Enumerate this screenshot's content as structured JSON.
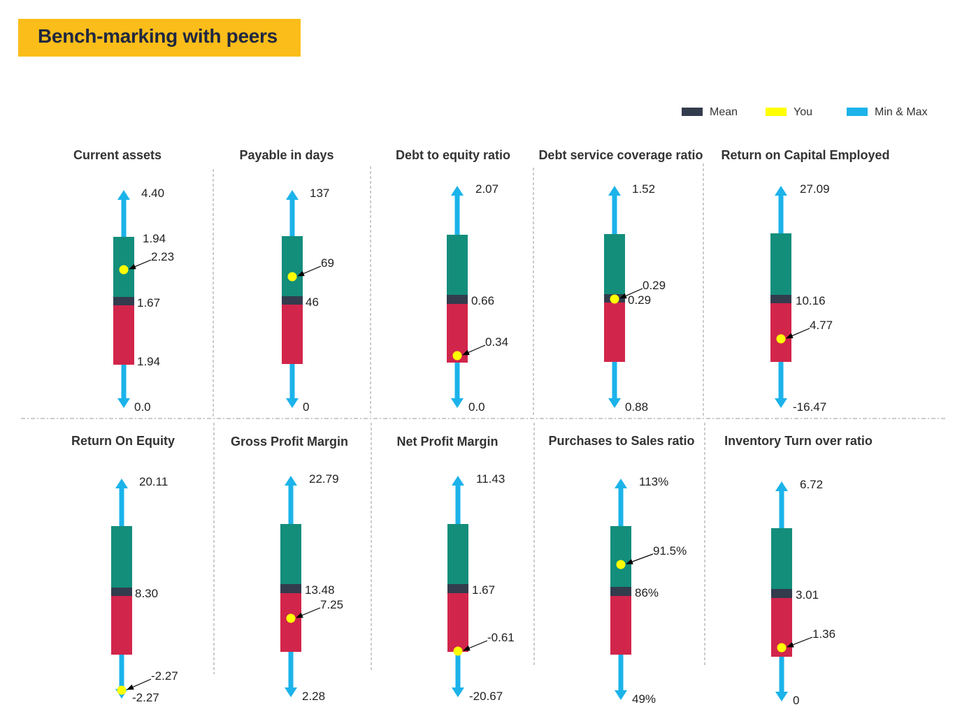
{
  "title": "Bench-marking with peers",
  "colors": {
    "title_bg": "#fbbd19",
    "upper": "#138e7b",
    "lower": "#d2254b",
    "mean": "#323c4d",
    "you": "#ffff00",
    "minmax": "#1bb3ea"
  },
  "legend": [
    {
      "label": "Mean",
      "color": "#323c4d"
    },
    {
      "label": "You",
      "color": "#ffff00"
    },
    {
      "label": "Min & Max",
      "color": "#1bb3ea"
    }
  ],
  "chart_data": [
    {
      "type": "box",
      "title": "Current assets",
      "max_label": "4.40",
      "upper_label": "1.94",
      "mean_label": "1.67",
      "lower_label": "1.94",
      "min_label": "0.0",
      "you_label": "2.23",
      "you_position": "upper"
    },
    {
      "type": "box",
      "title": "Payable in days",
      "max_label": "137",
      "mean_label": "46",
      "min_label": "0",
      "you_label": "69",
      "you_position": "upper"
    },
    {
      "type": "box",
      "title": "Debt to equity ratio",
      "max_label": "2.07",
      "mean_label": "0.66",
      "min_label": "0.0",
      "you_label": "0.34",
      "you_position": "lower"
    },
    {
      "type": "box",
      "title": "Debt service coverage ratio",
      "max_label": "1.52",
      "mean_label": "0.29",
      "min_label": "0.88",
      "you_label": "0.29",
      "you_position": "mean"
    },
    {
      "type": "box",
      "title": "Return on Capital Employed",
      "max_label": "27.09",
      "mean_label": "10.16",
      "min_label": "-16.47",
      "you_label": "4.77",
      "you_position": "lower"
    },
    {
      "type": "box",
      "title": "Return On Equity",
      "max_label": "20.11",
      "mean_label": "8.30",
      "min_label": "-2.27",
      "you_label": "-2.27",
      "you_position": "min"
    },
    {
      "type": "box",
      "title": "Gross Profit Margin",
      "max_label": "22.79",
      "mean_label": "13.48",
      "min_label": "2.28",
      "you_label": "7.25",
      "you_position": "lower"
    },
    {
      "type": "box",
      "title": "Net Profit Margin",
      "max_label": "11.43",
      "mean_label": "1.67",
      "min_label": "-20.67",
      "you_label": "-0.61",
      "you_position": "lower"
    },
    {
      "type": "box",
      "title": "Purchases to Sales ratio",
      "max_label": "113%",
      "mean_label": "86%",
      "min_label": "49%",
      "you_label": "91.5%",
      "you_position": "upper"
    },
    {
      "type": "box",
      "title": "Inventory Turn over ratio",
      "max_label": "6.72",
      "mean_label": "3.01",
      "min_label": "0",
      "you_label": "1.36",
      "you_position": "lower"
    }
  ]
}
